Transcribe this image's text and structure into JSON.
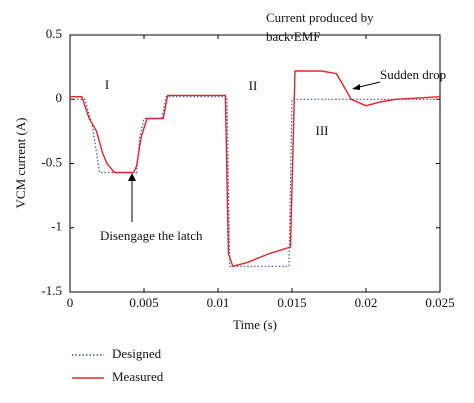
{
  "chart_data": {
    "type": "line",
    "xlabel": "Time (s)",
    "ylabel": "VCM current (A)",
    "xlim": [
      0,
      0.025
    ],
    "xticks": [
      0,
      0.005,
      0.01,
      0.015,
      0.02,
      0.025
    ],
    "ylim": [
      -1.5,
      0.5
    ],
    "yticks": [
      -1.5,
      -1,
      -0.5,
      0,
      0.5
    ],
    "series": [
      {
        "name": "Designed",
        "color": "#3b4fa8",
        "line_style": "dotted",
        "x": [
          0,
          0.001,
          0.0015,
          0.002,
          0.0045,
          0.0047,
          0.005,
          0.0062,
          0.0065,
          0.0106,
          0.0108,
          0.0148,
          0.015,
          0.025
        ],
        "values": [
          0,
          0,
          -0.2,
          -0.57,
          -0.57,
          -0.3,
          -0.15,
          -0.15,
          0.02,
          0.02,
          -1.3,
          -1.3,
          0,
          0
        ]
      },
      {
        "name": "Measured",
        "color": "#e0262a",
        "line_style": "solid",
        "x": [
          0,
          0.0008,
          0.001,
          0.0013,
          0.0018,
          0.0022,
          0.0025,
          0.003,
          0.0043,
          0.0045,
          0.0048,
          0.0052,
          0.0063,
          0.0066,
          0.0105,
          0.0107,
          0.011,
          0.012,
          0.0135,
          0.0149,
          0.0152,
          0.017,
          0.018,
          0.0185,
          0.019,
          0.02,
          0.021,
          0.022,
          0.025
        ],
        "values": [
          0.02,
          0.02,
          -0.05,
          -0.15,
          -0.25,
          -0.42,
          -0.5,
          -0.57,
          -0.57,
          -0.52,
          -0.3,
          -0.15,
          -0.15,
          0.03,
          0.03,
          -1.2,
          -1.3,
          -1.27,
          -1.2,
          -1.15,
          0.22,
          0.22,
          0.2,
          0.1,
          0,
          -0.05,
          -0.02,
          0,
          0.02
        ]
      }
    ],
    "annotations": [
      "I",
      "II",
      "III",
      "Current produced by",
      "back EMF",
      "Sudden drop",
      "Disengage the latch"
    ]
  }
}
